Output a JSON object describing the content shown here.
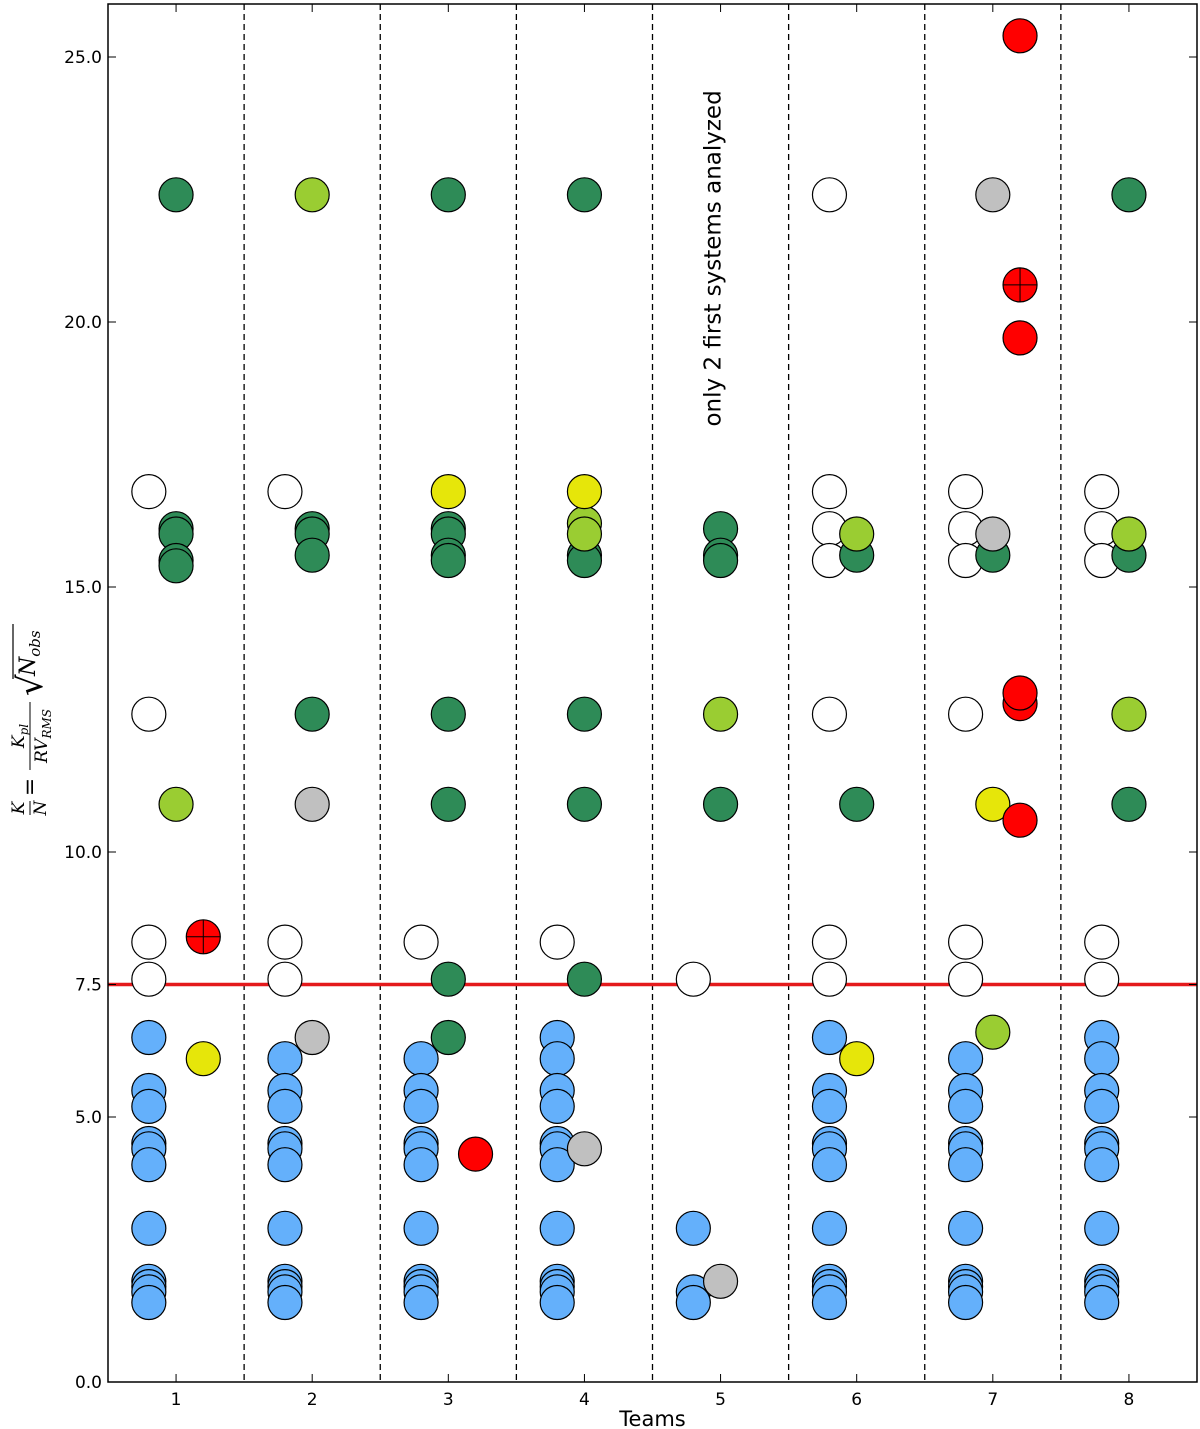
{
  "chart_data": {
    "type": "scatter",
    "title": "",
    "xlabel": "Teams",
    "ylabel": {
      "lhs_num": "K",
      "lhs_den": "N",
      "eq": "=",
      "num": "K",
      "num_sub": "pl",
      "den": "RV",
      "den_sub": "RMS",
      "radical": "√",
      "radicand": "N",
      "radicand_sub": "obs"
    },
    "xlim": [
      0.5,
      8.5
    ],
    "ylim": [
      0,
      26
    ],
    "x_ticks": [
      1,
      2,
      3,
      4,
      5,
      6,
      7,
      8
    ],
    "x_tick_labels": [
      "1",
      "2",
      "3",
      "4",
      "5",
      "6",
      "7",
      "8"
    ],
    "y_ticks": [
      0,
      5,
      10,
      15,
      20,
      25
    ],
    "y_tick_labels": [
      "0.0",
      "5.0",
      "10.0",
      "15.0",
      "20.0",
      "25.0"
    ],
    "extra_y_tick": {
      "value": 7.5,
      "label": "7.5"
    },
    "team_separators": [
      1.5,
      2.5,
      3.5,
      4.5,
      5.5,
      6.5,
      7.5
    ],
    "threshold_line": {
      "y": 7.5,
      "color": "#e41a1c"
    },
    "annotation": {
      "text": "only 2 first systems analyzed",
      "x": 5,
      "y": 21.2
    },
    "category_colors": {
      "blue": "#64b0fb",
      "white": "#ffffff",
      "darkgreen": "#2e8b57",
      "lightgreen": "#9acd32",
      "yellow": "#e6e60a",
      "gray": "#c0c0c0",
      "red": "#ff0000"
    },
    "series": [
      {
        "category": "blue",
        "points": [
          [
            0.8,
            6.5
          ],
          [
            0.8,
            5.5
          ],
          [
            0.8,
            5.2
          ],
          [
            0.8,
            4.5
          ],
          [
            0.8,
            4.4
          ],
          [
            0.8,
            4.1
          ],
          [
            0.8,
            2.9
          ],
          [
            0.8,
            1.9
          ],
          [
            0.8,
            1.8
          ],
          [
            0.8,
            1.7
          ],
          [
            0.8,
            1.5
          ],
          [
            1.8,
            6.1
          ],
          [
            1.8,
            5.5
          ],
          [
            1.8,
            5.2
          ],
          [
            1.8,
            4.5
          ],
          [
            1.8,
            4.4
          ],
          [
            1.8,
            4.1
          ],
          [
            1.8,
            2.9
          ],
          [
            1.8,
            1.9
          ],
          [
            1.8,
            1.8
          ],
          [
            1.8,
            1.7
          ],
          [
            1.8,
            1.5
          ],
          [
            2.8,
            6.1
          ],
          [
            2.8,
            5.5
          ],
          [
            2.8,
            5.2
          ],
          [
            2.8,
            4.5
          ],
          [
            2.8,
            4.4
          ],
          [
            2.8,
            4.1
          ],
          [
            2.8,
            2.9
          ],
          [
            2.8,
            1.9
          ],
          [
            2.8,
            1.8
          ],
          [
            2.8,
            1.7
          ],
          [
            2.8,
            1.5
          ],
          [
            3.8,
            6.5
          ],
          [
            3.8,
            6.1
          ],
          [
            3.8,
            5.5
          ],
          [
            3.8,
            5.2
          ],
          [
            3.8,
            4.5
          ],
          [
            3.8,
            4.4
          ],
          [
            3.8,
            4.1
          ],
          [
            3.8,
            2.9
          ],
          [
            3.8,
            1.9
          ],
          [
            3.8,
            1.8
          ],
          [
            3.8,
            1.7
          ],
          [
            3.8,
            1.5
          ],
          [
            4.8,
            2.9
          ],
          [
            4.8,
            1.7
          ],
          [
            4.8,
            1.5
          ],
          [
            5.8,
            6.5
          ],
          [
            5.8,
            5.5
          ],
          [
            5.8,
            5.2
          ],
          [
            5.8,
            4.5
          ],
          [
            5.8,
            4.4
          ],
          [
            5.8,
            4.1
          ],
          [
            5.8,
            2.9
          ],
          [
            5.8,
            1.9
          ],
          [
            5.8,
            1.8
          ],
          [
            5.8,
            1.7
          ],
          [
            5.8,
            1.5
          ],
          [
            6.8,
            6.1
          ],
          [
            6.8,
            5.5
          ],
          [
            6.8,
            5.2
          ],
          [
            6.8,
            4.5
          ],
          [
            6.8,
            4.4
          ],
          [
            6.8,
            4.1
          ],
          [
            6.8,
            2.9
          ],
          [
            6.8,
            1.9
          ],
          [
            6.8,
            1.8
          ],
          [
            6.8,
            1.7
          ],
          [
            6.8,
            1.5
          ],
          [
            7.8,
            6.5
          ],
          [
            7.8,
            6.1
          ],
          [
            7.8,
            5.5
          ],
          [
            7.8,
            5.2
          ],
          [
            7.8,
            4.5
          ],
          [
            7.8,
            4.4
          ],
          [
            7.8,
            4.1
          ],
          [
            7.8,
            2.9
          ],
          [
            7.8,
            1.9
          ],
          [
            7.8,
            1.8
          ],
          [
            7.8,
            1.7
          ],
          [
            7.8,
            1.5
          ]
        ]
      },
      {
        "category": "white",
        "points": [
          [
            0.8,
            16.8
          ],
          [
            0.8,
            12.6
          ],
          [
            0.8,
            8.3
          ],
          [
            0.8,
            7.6
          ],
          [
            1.8,
            16.8
          ],
          [
            1.8,
            8.3
          ],
          [
            1.8,
            7.6
          ],
          [
            2.8,
            8.3
          ],
          [
            3.8,
            8.3
          ],
          [
            4.8,
            7.6
          ],
          [
            5.8,
            22.4
          ],
          [
            5.8,
            16.8
          ],
          [
            5.8,
            16.1
          ],
          [
            5.8,
            15.5
          ],
          [
            5.8,
            12.6
          ],
          [
            5.8,
            8.3
          ],
          [
            5.8,
            7.6
          ],
          [
            6.8,
            16.8
          ],
          [
            6.8,
            16.1
          ],
          [
            6.8,
            15.5
          ],
          [
            6.8,
            12.6
          ],
          [
            6.8,
            8.3
          ],
          [
            6.8,
            7.6
          ],
          [
            7.8,
            16.8
          ],
          [
            7.8,
            16.1
          ],
          [
            7.8,
            15.5
          ],
          [
            7.8,
            8.3
          ],
          [
            7.8,
            7.6
          ]
        ]
      },
      {
        "category": "darkgreen",
        "points": [
          [
            1,
            22.4
          ],
          [
            1,
            16.1
          ],
          [
            1,
            16.0
          ],
          [
            1,
            15.5
          ],
          [
            1,
            15.4
          ],
          [
            2,
            16.1
          ],
          [
            2,
            16.0
          ],
          [
            2,
            15.6
          ],
          [
            2,
            12.6
          ],
          [
            3,
            22.4
          ],
          [
            3,
            16.1
          ],
          [
            3,
            16.0
          ],
          [
            3,
            15.6
          ],
          [
            3,
            15.5
          ],
          [
            3,
            12.6
          ],
          [
            3,
            10.9
          ],
          [
            3,
            7.6
          ],
          [
            3,
            6.5
          ],
          [
            4,
            22.4
          ],
          [
            4,
            15.6
          ],
          [
            4,
            15.5
          ],
          [
            4,
            12.6
          ],
          [
            4,
            10.9
          ],
          [
            4,
            7.6
          ],
          [
            5,
            16.1
          ],
          [
            5,
            15.6
          ],
          [
            5,
            15.5
          ],
          [
            5,
            10.9
          ],
          [
            6,
            15.6
          ],
          [
            6,
            10.9
          ],
          [
            7,
            15.6
          ],
          [
            8,
            22.4
          ],
          [
            8,
            15.6
          ],
          [
            8,
            10.9
          ]
        ]
      },
      {
        "category": "lightgreen",
        "points": [
          [
            1,
            10.9
          ],
          [
            2,
            22.4
          ],
          [
            4,
            16.2
          ],
          [
            4,
            16.0
          ],
          [
            5,
            12.6
          ],
          [
            6,
            16.0
          ],
          [
            7,
            6.6
          ],
          [
            8,
            16.0
          ],
          [
            8,
            12.6
          ]
        ]
      },
      {
        "category": "yellow",
        "points": [
          [
            1.2,
            6.1
          ],
          [
            3,
            16.8
          ],
          [
            4,
            16.8
          ],
          [
            6,
            6.1
          ],
          [
            7,
            10.9
          ]
        ]
      },
      {
        "category": "gray",
        "points": [
          [
            2,
            10.9
          ],
          [
            2,
            6.5
          ],
          [
            4,
            4.4
          ],
          [
            5,
            1.9
          ],
          [
            7,
            22.4
          ],
          [
            7,
            16.0
          ]
        ]
      },
      {
        "category": "red",
        "points": [
          [
            3.2,
            4.3
          ],
          [
            7.2,
            25.4
          ],
          [
            7.2,
            19.7
          ],
          [
            7.2,
            12.8
          ],
          [
            7.2,
            13.0
          ],
          [
            7.2,
            10.6
          ]
        ]
      },
      {
        "category": "red",
        "marker": "cross",
        "points": [
          [
            1.2,
            8.4
          ],
          [
            7.2,
            20.7
          ]
        ]
      }
    ]
  }
}
